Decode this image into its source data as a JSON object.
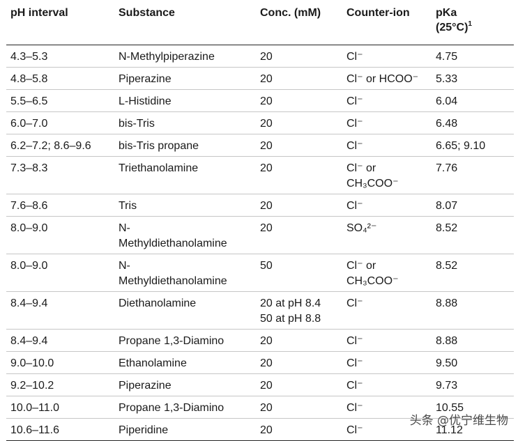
{
  "headers": {
    "ph_interval": "pH interval",
    "substance": "Substance",
    "conc": "Conc. (mM)",
    "counter_ion": "Counter-ion",
    "pka_line1": "pKa",
    "pka_line2": "(25°C)",
    "pka_footnote": "1"
  },
  "rows": [
    {
      "ph": "4.3–5.3",
      "substance": "N-Methylpiperazine",
      "conc": "20",
      "ion": "Cl⁻",
      "pka": "4.75"
    },
    {
      "ph": "4.8–5.8",
      "substance": "Piperazine",
      "conc": "20",
      "ion": "Cl⁻ or HCOO⁻",
      "pka": "5.33"
    },
    {
      "ph": "5.5–6.5",
      "substance": "L-Histidine",
      "conc": "20",
      "ion": "Cl⁻",
      "pka": "6.04"
    },
    {
      "ph": "6.0–7.0",
      "substance": "bis-Tris",
      "conc": "20",
      "ion": "Cl⁻",
      "pka": "6.48"
    },
    {
      "ph": "6.2–7.2; 8.6–9.6",
      "substance": "bis-Tris propane",
      "conc": "20",
      "ion": "Cl⁻",
      "pka": "6.65; 9.10"
    },
    {
      "ph": "7.3–8.3",
      "substance": "Triethanolamine",
      "conc": "20",
      "ion": "Cl⁻ or",
      "ion2": "CH₃COO⁻",
      "pka": "7.76"
    },
    {
      "ph": "7.6–8.6",
      "substance": "Tris",
      "conc": "20",
      "ion": "Cl⁻",
      "pka": "8.07"
    },
    {
      "ph": "8.0–9.0",
      "substance": "N-",
      "substance2": "Methyldiethanolamine",
      "conc": "20",
      "ion": "SO₄²⁻",
      "pka": "8.52"
    },
    {
      "ph": "8.0–9.0",
      "substance": "N-",
      "substance2": "Methyldiethanolamine",
      "conc": "50",
      "ion": "Cl⁻ or",
      "ion2": "CH₃COO⁻",
      "pka": "8.52"
    },
    {
      "ph": "8.4–9.4",
      "substance": "Diethanolamine",
      "conc": "20 at pH 8.4",
      "conc2": "50 at pH 8.8",
      "ion": "Cl⁻",
      "pka": "8.88"
    },
    {
      "ph": "8.4–9.4",
      "substance": "Propane 1,3-Diamino",
      "conc": "20",
      "ion": "Cl⁻",
      "pka": "8.88"
    },
    {
      "ph": "9.0–10.0",
      "substance": "Ethanolamine",
      "conc": "20",
      "ion": "Cl⁻",
      "pka": "9.50"
    },
    {
      "ph": "9.2–10.2",
      "substance": "Piperazine",
      "conc": "20",
      "ion": "Cl⁻",
      "pka": "9.73"
    },
    {
      "ph": "10.0–11.0",
      "substance": "Propane 1,3-Diamino",
      "conc": "20",
      "ion": "Cl⁻",
      "pka": "10.55"
    },
    {
      "ph": "10.6–11.6",
      "substance": "Piperidine",
      "conc": "20",
      "ion": "Cl⁻",
      "pka": "11.12"
    }
  ],
  "watermark": "头条 @优宁维生物"
}
